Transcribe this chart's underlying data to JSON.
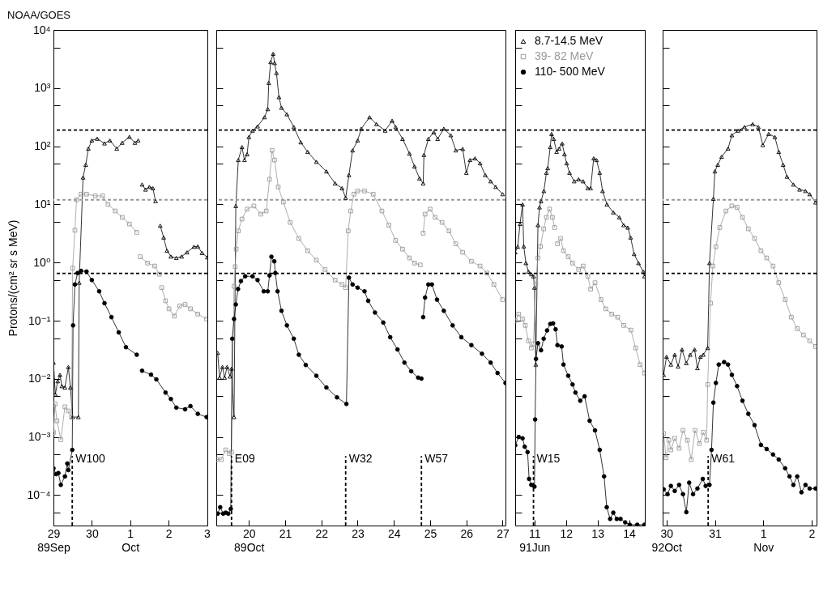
{
  "chart_data": [
    {
      "type": "line",
      "title": "NOAA/GOES",
      "ylabel": "Protons/(cm² sr s MeV)",
      "log": true,
      "xlim": [
        "1989-09-29T00:00",
        "1989-10-03T00:15"
      ],
      "ylim": [
        3e-05,
        10000
      ],
      "xticks": [
        {
          "value": "1989-09-29",
          "label": "29\n89Sep"
        },
        {
          "value": "1989-09-30",
          "label": "30"
        },
        {
          "value": "1989-10-01",
          "label": "1\nOct"
        },
        {
          "value": "1989-10-02",
          "label": "2"
        },
        {
          "value": "1989-10-03",
          "label": "3"
        }
      ],
      "yticks": [
        {
          "value": 5e-05,
          "label": null
        },
        {
          "value": 0.0001,
          "label": "10⁻⁴"
        },
        {
          "value": 0.0005,
          "label": null
        },
        {
          "value": 0.001,
          "label": "10⁻³"
        },
        {
          "value": 0.005,
          "label": null
        },
        {
          "value": 0.01,
          "label": "10⁻²"
        },
        {
          "value": 0.05,
          "label": null
        },
        {
          "value": 0.1,
          "label": "10⁻¹"
        },
        {
          "value": 0.5,
          "label": null
        },
        {
          "value": 1,
          "label": "10⁰"
        },
        {
          "value": 5,
          "label": null
        },
        {
          "value": 10,
          "label": "10¹"
        },
        {
          "value": 50,
          "label": null
        },
        {
          "value": 100,
          "label": "10²"
        },
        {
          "value": 500,
          "label": null
        },
        {
          "value": 1000,
          "label": "10³"
        },
        {
          "value": 5000,
          "label": null
        },
        {
          "value": 10000,
          "label": "10⁴"
        }
      ],
      "ref_lines": [
        {
          "axis": "y",
          "value": 190,
          "color": "#000000",
          "line_style": "dashed"
        },
        {
          "axis": "y",
          "value": 12,
          "color": "#999999",
          "line_style": "dashed"
        },
        {
          "axis": "y",
          "value": 0.65,
          "color": "#000000",
          "line_style": "dashed"
        },
        {
          "axis": "x",
          "value": "1989-09-29T11:45",
          "label": "W100",
          "color": "#000000",
          "line_style": "dashed"
        }
      ],
      "series": [
        {
          "color": "#000000",
          "marker": "triangle",
          "x": [
            "1989-09-29T00:00",
            "1989-09-29T01:10",
            "1989-09-29T02:40",
            "1989-09-29T04:05",
            "1989-09-29T05:15",
            "1989-09-29T07:10",
            "1989-09-29T09:20",
            "1989-09-29T10:35",
            "1989-09-29T12:00",
            "1989-09-29T15:35",
            "1989-09-29T16:05",
            "1989-09-29T18:30",
            "1989-09-29T20:10",
            "1989-09-29T21:50",
            "1989-09-30T00:00",
            "1989-09-30T03:20",
            "1989-09-30T07:55",
            "1989-09-30T11:15",
            "1989-09-30T15:35",
            "1989-09-30T19:00",
            "1989-09-30T23:30",
            "1989-10-01T02:55",
            "1989-10-01T05:00",
            "1989-10-01T06:15",
            "1989-10-01T07:25",
            "1989-10-01T09:35",
            "1989-10-01T12:00",
            "1989-10-01T14:10",
            "1989-10-01T15:50",
            "1989-10-01T17:15",
            "1989-10-01T18:45",
            "1989-10-01T20:55",
            "1989-10-01T23:00",
            "1989-10-02T01:25",
            "1989-10-02T04:50",
            "1989-10-02T08:10",
            "1989-10-02T11:30",
            "1989-10-02T15:50",
            "1989-10-02T18:15",
            "1989-10-02T20:55",
            "1989-10-03T00:15"
          ],
          "values": [
            0.019,
            0.0054,
            0.0091,
            0.0117,
            0.0075,
            0.0071,
            0.016,
            0.0071,
            0.0022,
            0.0022,
            0.45,
            29,
            48,
            91,
            126,
            135,
            112,
            126,
            91,
            115,
            145,
            115,
            126,
            null,
            22,
            18,
            20,
            19,
            11.4,
            null,
            4.3,
            2.7,
            1.6,
            1.27,
            1.2,
            1.27,
            1.5,
            1.87,
            1.9,
            1.46,
            1.23
          ]
        },
        {
          "color": "#999999",
          "marker": "square",
          "x": [
            "1989-09-29T00:00",
            "1989-09-29T01:00",
            "1989-09-29T02:10",
            "1989-09-29T04:35",
            "1989-09-29T07:10",
            "1989-09-29T09:20",
            "1989-09-29T11:15",
            "1989-09-29T12:00",
            "1989-09-29T13:25",
            "1989-09-29T14:25",
            "1989-09-29T17:15",
            "1989-09-29T20:40",
            "1989-09-30T02:10",
            "1989-09-30T06:45",
            "1989-09-30T10:05",
            "1989-09-30T14:40",
            "1989-09-30T19:00",
            "1989-09-30T23:30",
            "1989-10-01T04:05",
            "1989-10-01T05:15",
            "1989-10-01T06:15",
            "1989-10-01T10:50",
            "1989-10-01T15:20",
            "1989-10-01T18:15",
            "1989-10-01T19:00",
            "1989-10-01T19:40",
            "1989-10-01T22:05",
            "1989-10-02T00:15",
            "1989-10-02T03:35",
            "1989-10-02T07:00",
            "1989-10-02T10:20",
            "1989-10-02T13:40",
            "1989-10-02T18:15",
            "1989-10-02T23:45"
          ],
          "values": [
            0.0012,
            0.0037,
            0.0019,
            0.0009,
            0.0033,
            0.0028,
            0.0022,
            0.8,
            3.6,
            12,
            15,
            15,
            14,
            14,
            10,
            7.7,
            6,
            4.6,
            3.3,
            null,
            1.26,
            0.98,
            0.87,
            0.63,
            null,
            0.37,
            0.22,
            0.16,
            0.12,
            0.18,
            0.19,
            0.16,
            0.13,
            0.107
          ]
        },
        {
          "color": "#000000",
          "marker": "circle",
          "x": [
            "1989-09-29T00:00",
            "1989-09-29T01:40",
            "1989-09-29T03:05",
            "1989-09-29T04:35",
            "1989-09-29T07:10",
            "1989-09-29T08:40",
            "1989-09-29T09:20",
            "1989-09-29T11:45",
            "1989-09-29T12:15",
            "1989-09-29T13:25",
            "1989-09-29T15:05",
            "1989-09-29T17:15",
            "1989-09-29T20:40",
            "1989-09-30T00:00",
            "1989-09-30T04:35",
            "1989-09-30T07:55",
            "1989-09-30T12:15",
            "1989-09-30T16:50",
            "1989-09-30T21:20",
            "1989-10-01T04:05",
            "1989-10-01T05:45",
            "1989-10-01T07:25",
            "1989-10-01T13:00",
            "1989-10-01T16:20",
            "1989-10-01T22:05",
            "1989-10-02T01:25",
            "1989-10-02T04:50",
            "1989-10-02T10:20",
            "1989-10-02T13:40",
            "1989-10-02T18:15",
            "1989-10-02T23:45"
          ],
          "values": [
            0.00029,
            0.00023,
            0.00024,
            0.00015,
            0.00021,
            0.00035,
            0.00027,
            0.0006,
            0.083,
            0.42,
            0.66,
            0.72,
            0.7,
            0.5,
            0.32,
            0.2,
            0.115,
            0.063,
            0.035,
            0.026,
            null,
            0.0138,
            0.0118,
            0.0098,
            0.0058,
            0.0045,
            0.0032,
            0.003,
            0.0034,
            0.0025,
            0.0022
          ]
        }
      ]
    },
    {
      "type": "line",
      "log": true,
      "tick_labels": "x",
      "xlim": [
        "1989-10-19T02:25",
        "1989-10-27T01:55"
      ],
      "ylim": [
        3e-05,
        10000
      ],
      "xticks": [
        {
          "value": "1989-10-20",
          "label": "20\n89Oct"
        },
        {
          "value": "1989-10-21",
          "label": "21"
        },
        {
          "value": "1989-10-22",
          "label": "22"
        },
        {
          "value": "1989-10-23",
          "label": "23"
        },
        {
          "value": "1989-10-24",
          "label": "24"
        },
        {
          "value": "1989-10-25",
          "label": "25"
        },
        {
          "value": "1989-10-26",
          "label": "26"
        },
        {
          "value": "1989-10-27",
          "label": "27"
        }
      ],
      "yticks": [
        {
          "value": 5e-05,
          "label": null
        },
        {
          "value": 0.0001,
          "label": null
        },
        {
          "value": 0.0005,
          "label": null
        },
        {
          "value": 0.001,
          "label": null
        },
        {
          "value": 0.005,
          "label": null
        },
        {
          "value": 0.01,
          "label": null
        },
        {
          "value": 0.05,
          "label": null
        },
        {
          "value": 0.1,
          "label": null
        },
        {
          "value": 0.5,
          "label": null
        },
        {
          "value": 1,
          "label": null
        },
        {
          "value": 5,
          "label": null
        },
        {
          "value": 10,
          "label": null
        },
        {
          "value": 50,
          "label": null
        },
        {
          "value": 100,
          "label": null
        },
        {
          "value": 500,
          "label": null
        },
        {
          "value": 1000,
          "label": null
        },
        {
          "value": 5000,
          "label": null
        },
        {
          "value": 10000,
          "label": null
        }
      ],
      "ref_lines": [
        {
          "axis": "y",
          "value": 190,
          "color": "#000000",
          "line_style": "dashed"
        },
        {
          "axis": "y",
          "value": 12,
          "color": "#999999",
          "line_style": "dashed"
        },
        {
          "axis": "y",
          "value": 0.65,
          "color": "#000000",
          "line_style": "dashed"
        },
        {
          "axis": "x",
          "value": "1989-10-19T12:30",
          "label": "E09",
          "color": "#000000",
          "line_style": "dashed"
        },
        {
          "axis": "x",
          "value": "1989-10-22T16:05",
          "label": "W32",
          "color": "#000000",
          "line_style": "dashed"
        },
        {
          "axis": "x",
          "value": "1989-10-24T18:15",
          "label": "W57",
          "color": "#000000",
          "line_style": "dashed"
        }
      ],
      "series": [
        {
          "color": "#000000",
          "marker": "triangle",
          "x": [
            "1989-10-19T03:20",
            "1989-10-19T04:35",
            "1989-10-19T06:30",
            "1989-10-19T07:55",
            "1989-10-19T09:35",
            "1989-10-19T11:30",
            "1989-10-19T12:30",
            "1989-10-19T14:10",
            "1989-10-19T15:20",
            "1989-10-19T17:00",
            "1989-10-19T19:25",
            "1989-10-19T21:05",
            "1989-10-19T22:50",
            "1989-10-20T00:00",
            "1989-10-20T02:25",
            "1989-10-20T05:45",
            "1989-10-20T10:20",
            "1989-10-20T12:30",
            "1989-10-20T13:10",
            "1989-10-20T14:25",
            "1989-10-20T16:05",
            "1989-10-20T17:00",
            "1989-10-20T18:15",
            "1989-10-20T19:55",
            "1989-10-20T21:35",
            "1989-10-21T01:10",
            "1989-10-21T05:45",
            "1989-10-21T10:20",
            "1989-10-21T14:55",
            "1989-10-21T20:40",
            "1989-10-22T03:20",
            "1989-10-22T09:05",
            "1989-10-22T13:40",
            "1989-10-22T16:05",
            "1989-10-22T18:15",
            "1989-10-22T20:40",
            "1989-10-23T00:00",
            "1989-10-23T02:25",
            "1989-10-23T07:55",
            "1989-10-23T12:30",
            "1989-10-23T18:15",
            "1989-10-23T22:50",
            "1989-10-24T01:10",
            "1989-10-24T05:45",
            "1989-10-24T10:20",
            "1989-10-24T13:40",
            "1989-10-24T17:00",
            "1989-10-24T19:25",
            "1989-10-24T19:55",
            "1989-10-24T22:50",
            "1989-10-25T02:25",
            "1989-10-25T05:00",
            "1989-10-25T09:05",
            "1989-10-25T13:40",
            "1989-10-25T17:00",
            "1989-10-25T21:35",
            "1989-10-26T00:00",
            "1989-10-26T02:25",
            "1989-10-26T05:45",
            "1989-10-26T09:05",
            "1989-10-26T12:30",
            "1989-10-26T16:05",
            "1989-10-26T19:25",
            "1989-10-27T00:00"
          ],
          "values": [
            0.028,
            0.0105,
            0.016,
            0.0105,
            0.016,
            0.011,
            0.015,
            0.0022,
            9.4,
            58,
            97,
            58,
            73,
            144,
            186,
            220,
            316,
            436,
            1230,
            2800,
            3900,
            2700,
            1820,
            700,
            460,
            355,
            214,
            117,
            80,
            54,
            37,
            23,
            19,
            13,
            32,
            85,
            126,
            200,
            316,
            240,
            186,
            275,
            214,
            134,
            75,
            45,
            28,
            23,
            71,
            134,
            174,
            134,
            200,
            155,
            85,
            90,
            35,
            58,
            62,
            51,
            32,
            25,
            20,
            15
          ]
        },
        {
          "color": "#999999",
          "marker": "square",
          "x": [
            "1989-10-19T02:40",
            "1989-10-19T05:45",
            "1989-10-19T08:40",
            "1989-10-19T11:00",
            "1989-10-19T12:30",
            "1989-10-19T14:10",
            "1989-10-19T14:55",
            "1989-10-19T15:35",
            "1989-10-19T17:00",
            "1989-10-19T19:25",
            "1989-10-19T22:50",
            "1989-10-20T03:20",
            "1989-10-20T07:55",
            "1989-10-20T11:30",
            "1989-10-20T13:40",
            "1989-10-20T15:20",
            "1989-10-20T17:00",
            "1989-10-20T19:25",
            "1989-10-20T22:50",
            "1989-10-21T03:20",
            "1989-10-21T09:05",
            "1989-10-21T14:55",
            "1989-10-21T20:40",
            "1989-10-22T02:25",
            "1989-10-22T09:05",
            "1989-10-22T13:40",
            "1989-10-22T16:05",
            "1989-10-22T17:45",
            "1989-10-22T19:25",
            "1989-10-22T21:35",
            "1989-10-23T00:00",
            "1989-10-23T04:35",
            "1989-10-23T10:20",
            "1989-10-23T16:05",
            "1989-10-23T20:40",
            "1989-10-24T01:10",
            "1989-10-24T05:45",
            "1989-10-24T10:20",
            "1989-10-24T13:40",
            "1989-10-24T17:30",
            "1989-10-24T18:30",
            "1989-10-24T19:25",
            "1989-10-24T20:40",
            "1989-10-25T00:00",
            "1989-10-25T03:20",
            "1989-10-25T07:55",
            "1989-10-25T12:30",
            "1989-10-25T17:00",
            "1989-10-25T21:35",
            "1989-10-26T03:20",
            "1989-10-26T09:05",
            "1989-10-26T13:40",
            "1989-10-26T18:15",
            "1989-10-27T00:00"
          ],
          "values": [
            0.00041,
            0.00041,
            0.0006,
            0.00052,
            0.00055,
            0.39,
            0.85,
            1.7,
            3.5,
            5.6,
            8.3,
            9.4,
            6.8,
            7.7,
            27,
            85,
            58,
            20,
            11,
            4.9,
            2.6,
            1.6,
            1.1,
            0.76,
            0.5,
            0.42,
            0.37,
            3.5,
            7.7,
            15,
            17,
            17,
            15,
            7.7,
            4.4,
            2.4,
            1.7,
            1.2,
            0.98,
            0.91,
            null,
            3.2,
            6.8,
            8.3,
            6,
            4.9,
            3.5,
            2.1,
            1.5,
            1.05,
            0.87,
            0.66,
            0.42,
            0.23
          ]
        },
        {
          "color": "#000000",
          "marker": "circle",
          "x": [
            "1989-10-19T03:20",
            "1989-10-19T05:00",
            "1989-10-19T07:00",
            "1989-10-19T08:40",
            "1989-10-19T10:20",
            "1989-10-19T12:00",
            "1989-10-19T13:00",
            "1989-10-19T14:10",
            "1989-10-19T15:20",
            "1989-10-19T16:50",
            "1989-10-19T18:45",
            "1989-10-19T21:35",
            "1989-10-20T02:25",
            "1989-10-20T05:45",
            "1989-10-20T09:50",
            "1989-10-20T12:30",
            "1989-10-20T13:40",
            "1989-10-20T14:55",
            "1989-10-20T16:50",
            "1989-10-20T17:30",
            "1989-10-20T19:00",
            "1989-10-20T21:35",
            "1989-10-21T01:10",
            "1989-10-21T05:45",
            "1989-10-21T09:05",
            "1989-10-21T13:40",
            "1989-10-21T20:40",
            "1989-10-22T03:20",
            "1989-10-22T10:20",
            "1989-10-22T16:35",
            "1989-10-22T18:15",
            "1989-10-22T20:40",
            "1989-10-23T00:00",
            "1989-10-23T04:35",
            "1989-10-23T07:00",
            "1989-10-23T11:30",
            "1989-10-23T17:00",
            "1989-10-23T21:35",
            "1989-10-24T02:25",
            "1989-10-24T07:00",
            "1989-10-24T11:30",
            "1989-10-24T16:05",
            "1989-10-24T18:15",
            "1989-10-24T18:50",
            "1989-10-24T19:25",
            "1989-10-24T20:40",
            "1989-10-24T22:50",
            "1989-10-25T01:10",
            "1989-10-25T04:35",
            "1989-10-25T09:05",
            "1989-10-25T14:55",
            "1989-10-25T20:40",
            "1989-10-26T03:20",
            "1989-10-26T10:20",
            "1989-10-26T16:05",
            "1989-10-26T20:40",
            "1989-10-27T01:55"
          ],
          "values": [
            4.8e-05,
            6.2e-05,
            4.8e-05,
            5e-05,
            4.8e-05,
            5.8e-05,
            0.049,
            0.107,
            0.19,
            0.35,
            0.48,
            0.58,
            0.58,
            0.5,
            0.32,
            0.32,
            0.6,
            1.26,
            1.05,
            0.66,
            0.32,
            0.148,
            0.083,
            0.049,
            0.026,
            0.0173,
            0.0113,
            0.0071,
            0.0048,
            0.0037,
            0.55,
            0.42,
            0.37,
            0.32,
            0.22,
            0.138,
            0.093,
            0.052,
            0.032,
            0.019,
            0.0135,
            0.0105,
            0.0101,
            null,
            0.115,
            0.25,
            0.42,
            0.42,
            0.23,
            0.148,
            0.083,
            0.052,
            0.038,
            0.027,
            0.019,
            0.0126,
            0.0085
          ]
        }
      ]
    },
    {
      "type": "line",
      "log": true,
      "tick_labels": "x",
      "legend": "top left",
      "xlim": [
        "1991-06-10T09:20",
        "1991-06-14T12:00"
      ],
      "ylim": [
        3e-05,
        10000
      ],
      "xticks": [
        {
          "value": "1991-06-11",
          "label": "11\n91Jun"
        },
        {
          "value": "1991-06-12",
          "label": "12"
        },
        {
          "value": "1991-06-13",
          "label": "13"
        },
        {
          "value": "1991-06-14",
          "label": "14"
        }
      ],
      "yticks": [
        {
          "value": 5e-05,
          "label": null
        },
        {
          "value": 0.0001,
          "label": null
        },
        {
          "value": 0.0005,
          "label": null
        },
        {
          "value": 0.001,
          "label": null
        },
        {
          "value": 0.005,
          "label": null
        },
        {
          "value": 0.01,
          "label": null
        },
        {
          "value": 0.05,
          "label": null
        },
        {
          "value": 0.1,
          "label": null
        },
        {
          "value": 0.5,
          "label": null
        },
        {
          "value": 1,
          "label": null
        },
        {
          "value": 5,
          "label": null
        },
        {
          "value": 10,
          "label": null
        },
        {
          "value": 50,
          "label": null
        },
        {
          "value": 100,
          "label": null
        },
        {
          "value": 500,
          "label": null
        },
        {
          "value": 1000,
          "label": null
        },
        {
          "value": 5000,
          "label": null
        },
        {
          "value": 10000,
          "label": null
        }
      ],
      "ref_lines": [
        {
          "axis": "y",
          "value": 190,
          "color": "#000000",
          "line_style": "dashed"
        },
        {
          "axis": "y",
          "value": 12,
          "color": "#999999",
          "line_style": "dashed"
        },
        {
          "axis": "y",
          "value": 0.65,
          "color": "#000000",
          "line_style": "dashed"
        },
        {
          "axis": "x",
          "value": "1991-06-10T23:15",
          "label": "W15",
          "color": "#000000",
          "line_style": "dashed"
        }
      ],
      "series": [
        {
          "name": "8.7-14.5 MeV",
          "color": "#000000",
          "marker": "triangle",
          "x": [
            "1991-06-10T09:20",
            "1991-06-10T11:15",
            "1991-06-10T13:00",
            "1991-06-10T14:55",
            "1991-06-10T15:50",
            "1991-06-10T17:30",
            "1991-06-10T19:25",
            "1991-06-10T21:35",
            "1991-06-10T23:15",
            "1991-06-11T00:00",
            "1991-06-11T01:00",
            "1991-06-11T02:40",
            "1991-06-11T03:50",
            "1991-06-11T05:00",
            "1991-06-11T07:10",
            "1991-06-11T09:05",
            "1991-06-11T10:05",
            "1991-06-11T12:00",
            "1991-06-11T13:00",
            "1991-06-11T14:40",
            "1991-06-11T16:50",
            "1991-06-11T18:45",
            "1991-06-11T21:05",
            "1991-06-11T22:50",
            "1991-06-12T00:30",
            "1991-06-12T02:40",
            "1991-06-12T06:15",
            "1991-06-12T09:35",
            "1991-06-12T13:00",
            "1991-06-12T16:35",
            "1991-06-12T18:45",
            "1991-06-12T21:05",
            "1991-06-12T23:15",
            "1991-06-13T01:40",
            "1991-06-13T03:50",
            "1991-06-13T07:10",
            "1991-06-13T12:00",
            "1991-06-13T16:35",
            "1991-06-13T19:55",
            "1991-06-13T23:00",
            "1991-06-14T01:10",
            "1991-06-14T03:50",
            "1991-06-14T07:10",
            "1991-06-14T10:50",
            "1991-06-14T11:45"
          ],
          "values": [
            1.5,
            1.87,
            4.6,
            10,
            1.9,
            0.98,
            0.7,
            0.63,
            0.58,
            0.37,
            0.0176,
            4.4,
            8.9,
            11.4,
            17,
            35,
            42,
            97,
            163,
            134,
            80,
            91,
            112,
            73,
            51,
            35,
            25,
            27,
            25,
            19,
            19,
            62,
            58,
            35,
            17,
            10,
            7.3,
            6,
            4.4,
            4,
            2.7,
            1.4,
            0.98,
            0.7,
            0.58
          ]
        },
        {
          "name": "39- 82 MeV",
          "color": "#999999",
          "marker": "square",
          "x": [
            "1991-06-10T09:20",
            "1991-06-10T12:00",
            "1991-06-10T14:55",
            "1991-06-10T17:00",
            "1991-06-10T19:25",
            "1991-06-10T21:35",
            "1991-06-10T23:15",
            "1991-06-11T01:00",
            "1991-06-11T02:40",
            "1991-06-11T04:35",
            "1991-06-11T07:00",
            "1991-06-11T09:05",
            "1991-06-11T11:30",
            "1991-06-11T13:40",
            "1991-06-11T15:20",
            "1991-06-11T16:35",
            "1991-06-11T17:30",
            "1991-06-11T19:55",
            "1991-06-11T22:05",
            "1991-06-12T01:40",
            "1991-06-12T05:00",
            "1991-06-12T09:35",
            "1991-06-12T13:00",
            "1991-06-12T16:35",
            "1991-06-12T18:45",
            "1991-06-12T22:05",
            "1991-06-13T02:40",
            "1991-06-13T06:15",
            "1991-06-13T10:50",
            "1991-06-13T15:20",
            "1991-06-13T19:55",
            "1991-06-14T01:25",
            "1991-06-14T05:00",
            "1991-06-14T08:25",
            "1991-06-14T11:45"
          ],
          "values": [
            0.1,
            0.13,
            0.107,
            0.083,
            0.045,
            0.034,
            0.04,
            0.42,
            1.2,
            1.9,
            3.8,
            6,
            8.3,
            6,
            4,
            null,
            2.1,
            2.6,
            1.6,
            1.26,
            0.98,
            0.76,
            0.87,
            0.58,
            0.35,
            0.45,
            0.23,
            0.16,
            0.13,
            0.115,
            0.083,
            0.069,
            0.034,
            0.0176,
            0.0126
          ]
        },
        {
          "name": "110- 500 MeV",
          "color": "#000000",
          "marker": "circle",
          "x": [
            "1991-06-10T09:20",
            "1991-06-10T12:00",
            "1991-06-10T14:55",
            "1991-06-10T16:35",
            "1991-06-10T18:45",
            "1991-06-10T19:55",
            "1991-06-10T21:35",
            "1991-06-11T00:00",
            "1991-06-11T00:30",
            "1991-06-11T01:10",
            "1991-06-11T02:40",
            "1991-06-11T05:00",
            "1991-06-11T07:00",
            "1991-06-11T09:35",
            "1991-06-11T12:00",
            "1991-06-11T14:10",
            "1991-06-11T16:05",
            "1991-06-11T17:30",
            "1991-06-11T20:40",
            "1991-06-11T22:05",
            "1991-06-12T01:40",
            "1991-06-12T05:00",
            "1991-06-12T07:10",
            "1991-06-12T10:50",
            "1991-06-12T14:10",
            "1991-06-12T18:00",
            "1991-06-12T22:05",
            "1991-06-13T01:40",
            "1991-06-13T05:00",
            "1991-06-13T07:00",
            "1991-06-13T09:35",
            "1991-06-13T12:00",
            "1991-06-13T14:40",
            "1991-06-13T17:30",
            "1991-06-13T21:05",
            "1991-06-14T00:30",
            "1991-06-14T06:15",
            "1991-06-14T11:45"
          ],
          "values": [
            0.00072,
            0.001,
            0.00095,
            0.00068,
            0.00055,
            0.00019,
            0.00015,
            0.00014,
            0.002,
            0.022,
            0.041,
            0.031,
            0.049,
            0.068,
            0.088,
            0.09,
            0.071,
            0.038,
            0.036,
            0.0176,
            0.0113,
            0.008,
            0.0058,
            0.0042,
            0.005,
            0.0019,
            0.0013,
            0.0006,
            0.00021,
            6.2e-05,
            3.9e-05,
            5e-05,
            3.9e-05,
            3.9e-05,
            3.4e-05,
            3.1e-05,
            3.1e-05,
            3.1e-05
          ]
        }
      ]
    },
    {
      "type": "line",
      "log": true,
      "tick_labels": "x",
      "xlim": [
        "1992-10-29T22:05",
        "1992-11-02T02:25"
      ],
      "ylim": [
        3e-05,
        10000
      ],
      "xticks": [
        {
          "value": "1992-10-30",
          "label": "30\n92Oct"
        },
        {
          "value": "1992-10-31",
          "label": "31"
        },
        {
          "value": "1992-11-01",
          "label": "1\nNov"
        },
        {
          "value": "1992-11-02",
          "label": "2"
        }
      ],
      "yticks": [
        {
          "value": 5e-05,
          "label": null
        },
        {
          "value": 0.0001,
          "label": null
        },
        {
          "value": 0.0005,
          "label": null
        },
        {
          "value": 0.001,
          "label": null
        },
        {
          "value": 0.005,
          "label": null
        },
        {
          "value": 0.01,
          "label": null
        },
        {
          "value": 0.05,
          "label": null
        },
        {
          "value": 0.1,
          "label": null
        },
        {
          "value": 0.5,
          "label": null
        },
        {
          "value": 1,
          "label": null
        },
        {
          "value": 5,
          "label": null
        },
        {
          "value": 10,
          "label": null
        },
        {
          "value": 50,
          "label": null
        },
        {
          "value": 100,
          "label": null
        },
        {
          "value": 500,
          "label": null
        },
        {
          "value": 1000,
          "label": null
        },
        {
          "value": 5000,
          "label": null
        },
        {
          "value": 10000,
          "label": null
        }
      ],
      "ref_lines": [
        {
          "axis": "y",
          "value": 190,
          "color": "#000000",
          "line_style": "dashed"
        },
        {
          "axis": "y",
          "value": 12,
          "color": "#999999",
          "line_style": "dashed"
        },
        {
          "axis": "y",
          "value": 0.65,
          "color": "#000000",
          "line_style": "dashed"
        },
        {
          "axis": "x",
          "value": "1992-10-30T20:40",
          "label": "W61",
          "color": "#000000",
          "line_style": "dashed"
        }
      ],
      "series": [
        {
          "color": "#000000",
          "marker": "triangle",
          "x": [
            "1992-10-29T22:35",
            "1992-10-30T00:00",
            "1992-10-30T02:10",
            "1992-10-30T04:05",
            "1992-10-30T05:45",
            "1992-10-30T07:40",
            "1992-10-30T09:50",
            "1992-10-30T11:45",
            "1992-10-30T13:55",
            "1992-10-30T15:20",
            "1992-10-30T16:50",
            "1992-10-30T18:15",
            "1992-10-30T20:25",
            "1992-10-30T21:20",
            "1992-10-30T23:15",
            "1992-10-31T00:00",
            "1992-10-31T01:25",
            "1992-10-31T03:20",
            "1992-10-31T06:30",
            "1992-10-31T08:25",
            "1992-10-31T11:30",
            "1992-10-31T14:40",
            "1992-10-31T18:45",
            "1992-10-31T21:35",
            "1992-10-31T23:45",
            "1992-11-01T02:40",
            "1992-11-01T05:45",
            "1992-11-01T07:40",
            "1992-11-01T09:50",
            "1992-11-01T11:45",
            "1992-11-01T14:55",
            "1992-11-01T18:00",
            "1992-11-01T20:55",
            "1992-11-01T23:00",
            "1992-11-02T01:55"
          ],
          "values": [
            0.0117,
            0.024,
            0.0176,
            0.026,
            0.0163,
            0.032,
            0.0186,
            0.026,
            0.032,
            0.0153,
            0.024,
            0.026,
            0.034,
            0.98,
            12.5,
            37,
            48,
            66,
            91,
            155,
            186,
            214,
            240,
            214,
            105,
            163,
            144,
            80,
            48,
            30,
            22,
            18,
            17,
            15,
            10.8
          ]
        },
        {
          "color": "#999999",
          "marker": "square",
          "x": [
            "1992-10-29T22:35",
            "1992-10-29T23:45",
            "1992-10-30T01:10",
            "1992-10-30T02:10",
            "1992-10-30T04:05",
            "1992-10-30T06:15",
            "1992-10-30T08:10",
            "1992-10-30T10:20",
            "1992-10-30T12:15",
            "1992-10-30T14:10",
            "1992-10-30T16:20",
            "1992-10-30T18:15",
            "1992-10-30T19:55",
            "1992-10-30T20:25",
            "1992-10-30T21:50",
            "1992-10-30T23:00",
            "1992-10-31T00:30",
            "1992-10-31T02:25",
            "1992-10-31T05:30",
            "1992-10-31T08:25",
            "1992-10-31T11:00",
            "1992-10-31T13:40",
            "1992-10-31T16:35",
            "1992-10-31T19:40",
            "1992-10-31T22:50",
            "1992-11-01T01:40",
            "1992-11-01T04:50",
            "1992-11-01T07:40",
            "1992-11-01T10:50",
            "1992-11-01T13:55",
            "1992-11-01T16:50",
            "1992-11-01T19:55",
            "1992-11-01T23:00",
            "1992-11-02T01:55"
          ],
          "values": [
            0.00115,
            0.00044,
            0.00088,
            0.0006,
            0.00095,
            0.00064,
            0.0013,
            0.00088,
            0.00041,
            0.0013,
            0.00077,
            0.0012,
            0.00088,
            0.008,
            0.2,
            0.87,
            1.87,
            4,
            7.7,
            9.4,
            8.9,
            6,
            3.8,
            2.6,
            1.6,
            1.2,
            0.87,
            0.45,
            0.23,
            0.115,
            0.073,
            0.057,
            0.045,
            0.036
          ]
        },
        {
          "color": "#000000",
          "marker": "circle",
          "x": [
            "1992-10-29T22:35",
            "1992-10-30T00:30",
            "1992-10-30T02:10",
            "1992-10-30T04:05",
            "1992-10-30T06:15",
            "1992-10-30T08:10",
            "1992-10-30T09:50",
            "1992-10-30T11:15",
            "1992-10-30T13:10",
            "1992-10-30T15:20",
            "1992-10-30T18:00",
            "1992-10-30T19:25",
            "1992-10-30T21:20",
            "1992-10-30T22:20",
            "1992-10-30T23:15",
            "1992-10-31T00:30",
            "1992-10-31T01:55",
            "1992-10-31T04:35",
            "1992-10-31T06:30",
            "1992-10-31T08:25",
            "1992-10-31T11:00",
            "1992-10-31T13:40",
            "1992-10-31T16:35",
            "1992-10-31T19:40",
            "1992-10-31T22:50",
            "1992-11-01T01:40",
            "1992-11-01T04:50",
            "1992-11-01T07:40",
            "1992-11-01T10:50",
            "1992-11-01T13:00",
            "1992-11-01T14:55",
            "1992-11-01T16:50",
            "1992-11-01T18:55",
            "1992-11-01T20:55",
            "1992-11-01T23:00",
            "1992-11-02T01:55"
          ],
          "values": [
            0.000126,
            0.000104,
            0.000144,
            0.000118,
            0.00015,
            0.000104,
            5.1e-05,
            0.000164,
            0.000104,
            0.00013,
            0.00019,
            0.000144,
            0.00015,
            0.0006,
            0.0039,
            0.0085,
            0.0176,
            0.0194,
            0.0176,
            0.0117,
            0.0075,
            0.0042,
            0.0025,
            0.0016,
            0.00073,
            0.00062,
            0.0005,
            0.00041,
            0.00029,
            0.00021,
            0.00015,
            0.00021,
            0.000112,
            0.00015,
            0.00013,
            0.00013
          ]
        }
      ]
    }
  ]
}
